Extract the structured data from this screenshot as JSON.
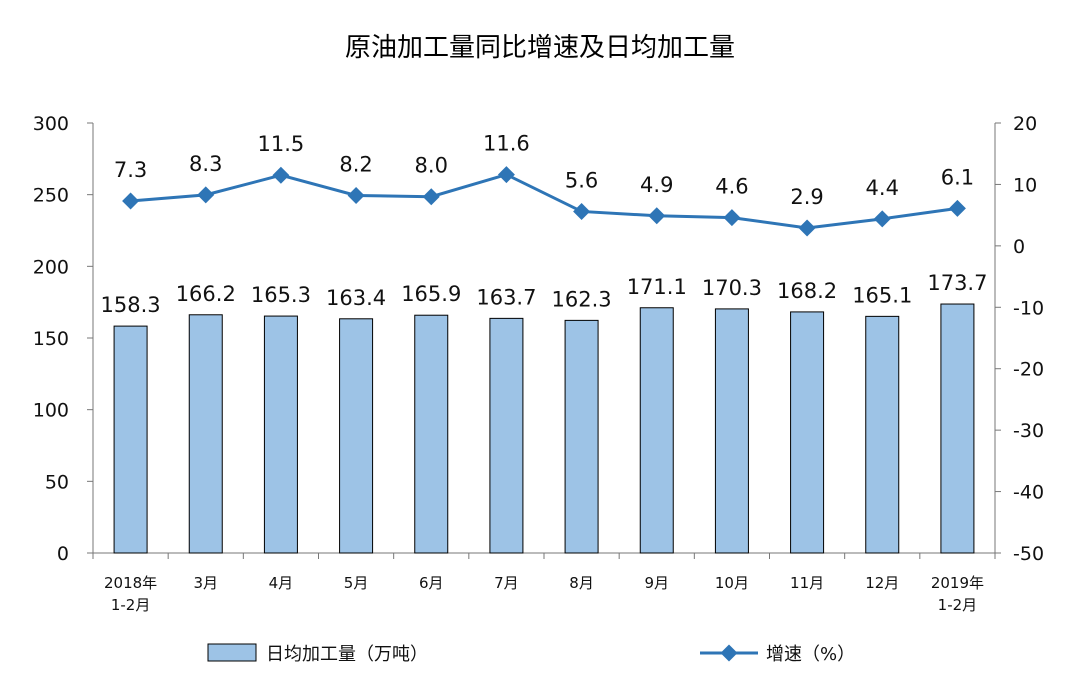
{
  "chart_data": {
    "type": "bar+line",
    "title": "原油加工量同比增速及日均加工量",
    "categories": [
      [
        "2018年",
        "1-2月"
      ],
      [
        "3月"
      ],
      [
        "4月"
      ],
      [
        "5月"
      ],
      [
        "6月"
      ],
      [
        "7月"
      ],
      [
        "8月"
      ],
      [
        "9月"
      ],
      [
        "10月"
      ],
      [
        "11月"
      ],
      [
        "12月"
      ],
      [
        "2019年",
        "1-2月"
      ]
    ],
    "series": [
      {
        "name": "日均加工量（万吨）",
        "type": "bar",
        "axis": "left",
        "color": "#9DC3E6",
        "values": [
          158.3,
          166.2,
          165.3,
          163.4,
          165.9,
          163.7,
          162.3,
          171.1,
          170.3,
          168.2,
          165.1,
          173.7
        ],
        "labels": [
          "158.3",
          "166.2",
          "165.3",
          "163.4",
          "165.9",
          "163.7",
          "162.3",
          "171.1",
          "170.3",
          "168.2",
          "165.1",
          "173.7"
        ]
      },
      {
        "name": "增速（%）",
        "type": "line",
        "axis": "right",
        "color": "#2E75B6",
        "values": [
          7.3,
          8.3,
          11.5,
          8.2,
          8.0,
          11.6,
          5.6,
          4.9,
          4.6,
          2.9,
          4.4,
          6.1
        ],
        "labels": [
          "7.3",
          "8.3",
          "11.5",
          "8.2",
          "8.0",
          "11.6",
          "5.6",
          "4.9",
          "4.6",
          "2.9",
          "4.4",
          "6.1"
        ]
      }
    ],
    "y_left": {
      "ylim": [
        0,
        300
      ],
      "ticks": [
        0,
        50,
        100,
        150,
        200,
        250,
        300
      ]
    },
    "y_right": {
      "ylim": [
        -50,
        20
      ],
      "ticks": [
        -50,
        -40,
        -30,
        -20,
        -10,
        0,
        10,
        20
      ]
    },
    "grid": false,
    "legend": "bottom"
  }
}
